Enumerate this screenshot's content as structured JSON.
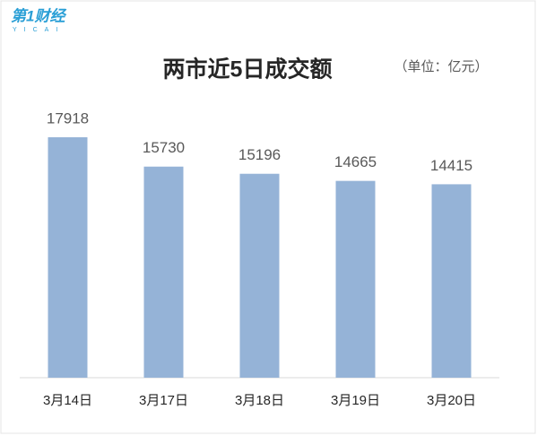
{
  "logo": {
    "brand": "第1财经",
    "sub": "YICAI"
  },
  "chart_data": {
    "type": "bar",
    "title": "两市近5日成交额",
    "subtitle": "（单位：亿元）",
    "categories": [
      "3月14日",
      "3月17日",
      "3月18日",
      "3月19日",
      "3月20日"
    ],
    "values": [
      17918,
      15730,
      15196,
      14665,
      14415
    ],
    "color": "#95b3d7"
  }
}
